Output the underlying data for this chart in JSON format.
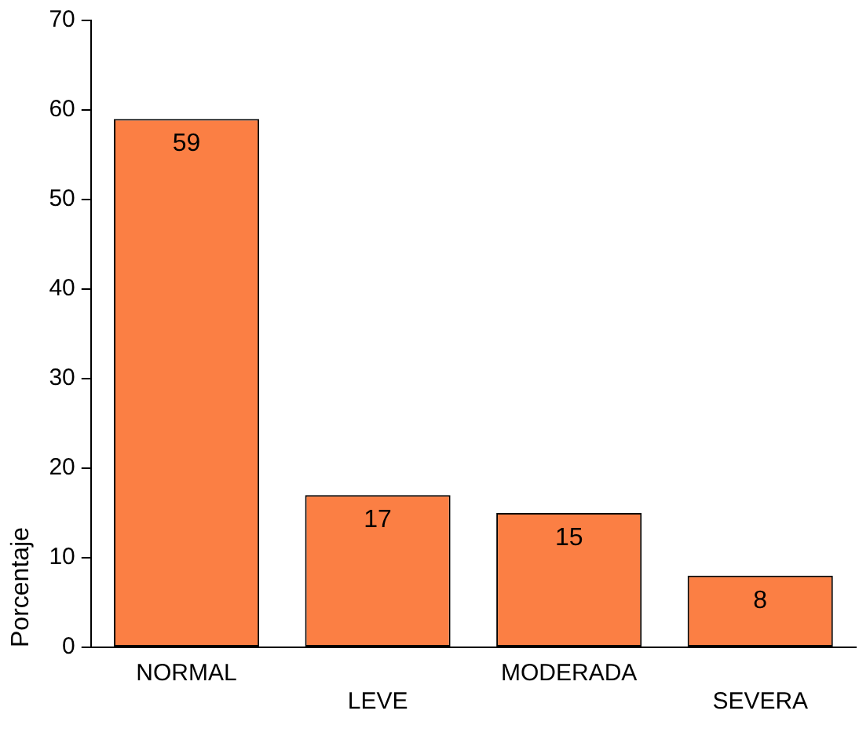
{
  "chart_data": {
    "type": "bar",
    "ylabel": "Porcentaje",
    "categories": [
      "NORMAL",
      "LEVE",
      "MODERADA",
      "SEVERA"
    ],
    "values": [
      59,
      17,
      15,
      8
    ],
    "value_labels": [
      "59",
      "17",
      "15",
      "8"
    ],
    "color": "#fb7f44",
    "ylim": [
      0,
      70
    ],
    "yticks": [
      0,
      10,
      20,
      30,
      40,
      50,
      60,
      70
    ],
    "grid": false,
    "legend": false
  }
}
